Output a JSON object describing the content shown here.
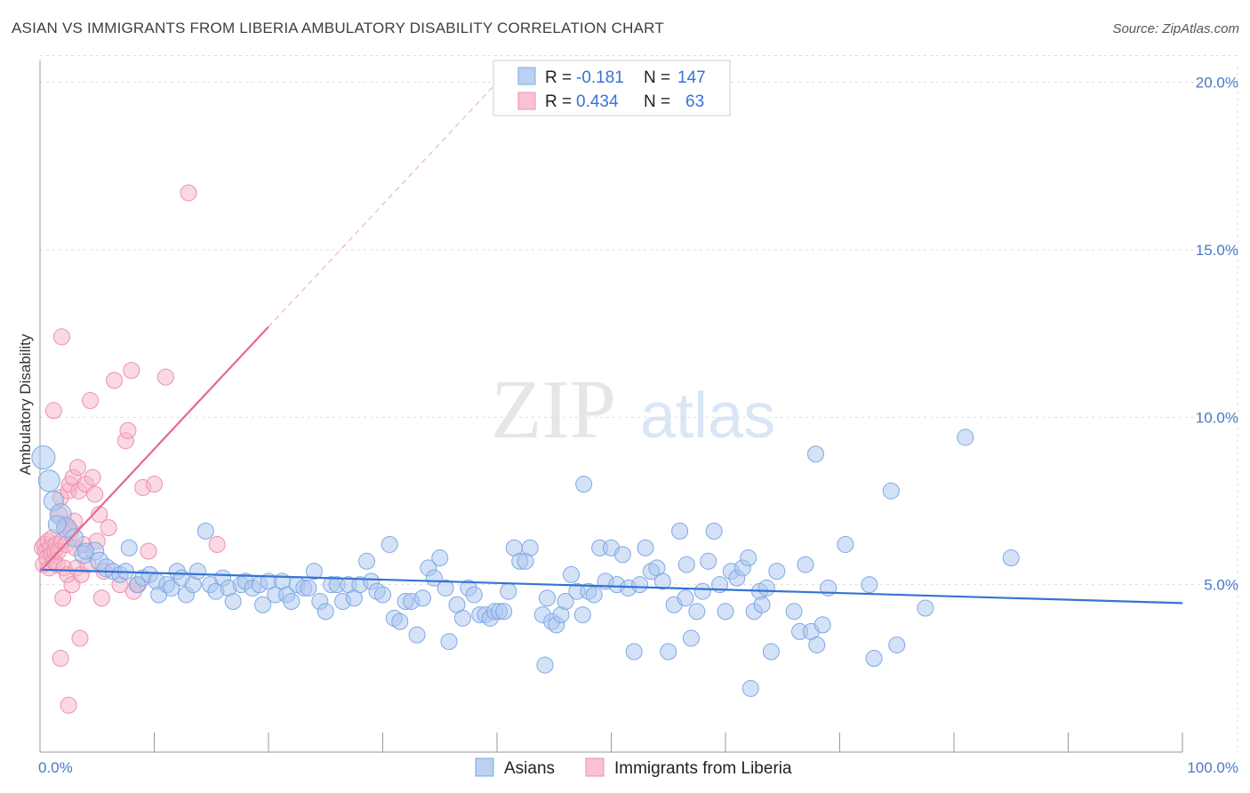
{
  "header": {
    "title": "ASIAN VS IMMIGRANTS FROM LIBERIA AMBULATORY DISABILITY CORRELATION CHART",
    "source": "Source: ZipAtlas.com"
  },
  "watermark": {
    "zip": "ZIP",
    "atlas": "atlas"
  },
  "colors": {
    "asian_fill": "#a9c6ef",
    "asian_stroke": "#7fa8e3",
    "asian_line": "#3573d4",
    "liberia_fill": "#f6b3c8",
    "liberia_stroke": "#ef8fae",
    "liberia_line": "#e4698f",
    "grid": "#dddddd",
    "tick_label": "#4a78c9"
  },
  "legend": {
    "rows": [
      {
        "r_label": "R =",
        "r_value": "-0.181",
        "n_label": "N =",
        "n_value": "147"
      },
      {
        "r_label": "R =",
        "r_value": "0.434",
        "n_label": "N =",
        "n_value": "63"
      }
    ],
    "bottom": [
      "Asians",
      "Immigrants from Liberia"
    ]
  },
  "chart_data": {
    "type": "scatter",
    "title": "ASIAN VS IMMIGRANTS FROM LIBERIA AMBULATORY DISABILITY CORRELATION CHART",
    "xlabel": "",
    "ylabel": "Ambulatory Disability",
    "xlim": [
      0,
      100
    ],
    "ylim": [
      0,
      21
    ],
    "x_tick_labels": [
      "0.0%",
      "100.0%"
    ],
    "y_ticks": [
      5,
      10,
      15,
      20
    ],
    "y_tick_labels": [
      "5.0%",
      "10.0%",
      "15.0%",
      "20.0%"
    ],
    "grid": true,
    "legend_position": "top-center",
    "series": [
      {
        "name": "Asians",
        "r": -0.181,
        "n": 147,
        "trend": {
          "x": [
            0,
            100
          ],
          "y": [
            5.45,
            4.45
          ],
          "dashed_extension": false
        },
        "points": [
          [
            0.3,
            8.8,
            13
          ],
          [
            0.8,
            8.1,
            12
          ],
          [
            1.2,
            7.5,
            11
          ],
          [
            1.8,
            7.1,
            12
          ],
          [
            2.3,
            6.7,
            11
          ],
          [
            3.0,
            6.4,
            10
          ],
          [
            1.5,
            6.8,
            10
          ],
          [
            4.8,
            6.0,
            10
          ],
          [
            3.8,
            5.9,
            10
          ],
          [
            4.0,
            6.0,
            9
          ],
          [
            5.2,
            5.7,
            10
          ],
          [
            5.8,
            5.5,
            10
          ],
          [
            6.4,
            5.4,
            9
          ],
          [
            7.0,
            5.3,
            9
          ],
          [
            7.5,
            5.4,
            9
          ],
          [
            7.8,
            6.1,
            9
          ],
          [
            8.5,
            5.0,
            9
          ],
          [
            9.0,
            5.2,
            9
          ],
          [
            9.6,
            5.3,
            9
          ],
          [
            10.2,
            5.1,
            9
          ],
          [
            10.4,
            4.7,
            9
          ],
          [
            11.1,
            5.0,
            9
          ],
          [
            11.5,
            4.9,
            9
          ],
          [
            12.0,
            5.4,
            9
          ],
          [
            12.4,
            5.2,
            9
          ],
          [
            12.8,
            4.7,
            9
          ],
          [
            13.4,
            5.0,
            9
          ],
          [
            13.8,
            5.4,
            9
          ],
          [
            14.5,
            6.6,
            9
          ],
          [
            14.9,
            5.0,
            9
          ],
          [
            15.4,
            4.8,
            9
          ],
          [
            16.0,
            5.2,
            9
          ],
          [
            16.5,
            4.9,
            9
          ],
          [
            16.9,
            4.5,
            9
          ],
          [
            17.6,
            5.0,
            9
          ],
          [
            18.0,
            5.1,
            9
          ],
          [
            18.6,
            4.9,
            9
          ],
          [
            19.2,
            5.0,
            9
          ],
          [
            19.5,
            4.4,
            9
          ],
          [
            20.0,
            5.1,
            9
          ],
          [
            20.6,
            4.7,
            9
          ],
          [
            21.2,
            5.1,
            9
          ],
          [
            21.6,
            4.7,
            9
          ],
          [
            22.0,
            4.5,
            9
          ],
          [
            22.5,
            5.0,
            9
          ],
          [
            23.1,
            4.9,
            9
          ],
          [
            23.5,
            4.9,
            9
          ],
          [
            24.0,
            5.4,
            9
          ],
          [
            24.5,
            4.5,
            9
          ],
          [
            25.0,
            4.2,
            9
          ],
          [
            25.5,
            5.0,
            9
          ],
          [
            26.0,
            5.0,
            9
          ],
          [
            26.5,
            4.5,
            9
          ],
          [
            27.0,
            5.0,
            9
          ],
          [
            27.5,
            4.6,
            9
          ],
          [
            28.0,
            5.0,
            9
          ],
          [
            28.6,
            5.7,
            9
          ],
          [
            29.0,
            5.1,
            9
          ],
          [
            29.5,
            4.8,
            9
          ],
          [
            30.0,
            4.7,
            9
          ],
          [
            30.6,
            6.2,
            9
          ],
          [
            31.0,
            4.0,
            9
          ],
          [
            31.5,
            3.9,
            9
          ],
          [
            32.0,
            4.5,
            9
          ],
          [
            32.5,
            4.5,
            9
          ],
          [
            33.0,
            3.5,
            9
          ],
          [
            33.5,
            4.6,
            9
          ],
          [
            34.0,
            5.5,
            9
          ],
          [
            34.5,
            5.2,
            9
          ],
          [
            35.0,
            5.8,
            9
          ],
          [
            35.5,
            4.9,
            9
          ],
          [
            35.8,
            3.3,
            9
          ],
          [
            36.5,
            4.4,
            9
          ],
          [
            37.0,
            4.0,
            9
          ],
          [
            37.5,
            4.9,
            9
          ],
          [
            38.0,
            4.7,
            9
          ],
          [
            38.5,
            4.1,
            9
          ],
          [
            39.0,
            4.1,
            9
          ],
          [
            39.4,
            4.0,
            9
          ],
          [
            39.8,
            4.2,
            9
          ],
          [
            40.2,
            4.2,
            9
          ],
          [
            40.6,
            4.2,
            9
          ],
          [
            41.0,
            4.8,
            9
          ],
          [
            41.5,
            6.1,
            9
          ],
          [
            42.0,
            5.7,
            9
          ],
          [
            42.5,
            5.7,
            9
          ],
          [
            42.9,
            6.1,
            9
          ],
          [
            44.0,
            4.1,
            9
          ],
          [
            44.4,
            4.6,
            9
          ],
          [
            44.8,
            3.9,
            9
          ],
          [
            45.2,
            3.8,
            9
          ],
          [
            45.6,
            4.1,
            9
          ],
          [
            46.0,
            4.5,
            9
          ],
          [
            46.5,
            5.3,
            9
          ],
          [
            47.0,
            4.8,
            9
          ],
          [
            47.5,
            4.1,
            9
          ],
          [
            48.0,
            4.8,
            9
          ],
          [
            48.5,
            4.7,
            9
          ],
          [
            49.0,
            6.1,
            9
          ],
          [
            49.5,
            5.1,
            9
          ],
          [
            50.0,
            6.1,
            9
          ],
          [
            50.5,
            5.0,
            9
          ],
          [
            51.0,
            5.9,
            9
          ],
          [
            51.5,
            4.9,
            9
          ],
          [
            52.0,
            3.0,
            9
          ],
          [
            52.5,
            5.0,
            9
          ],
          [
            53.0,
            6.1,
            9
          ],
          [
            53.5,
            5.4,
            9
          ],
          [
            54.0,
            5.5,
            9
          ],
          [
            54.5,
            5.1,
            9
          ],
          [
            55.0,
            3.0,
            9
          ],
          [
            55.5,
            4.4,
            9
          ],
          [
            56.0,
            6.6,
            9
          ],
          [
            56.5,
            4.6,
            9
          ],
          [
            57.0,
            3.4,
            9
          ],
          [
            57.5,
            4.2,
            9
          ],
          [
            58.0,
            4.8,
            9
          ],
          [
            58.5,
            5.7,
            9
          ],
          [
            59.0,
            6.6,
            9
          ],
          [
            59.5,
            5.0,
            9
          ],
          [
            60.0,
            4.2,
            9
          ],
          [
            60.5,
            5.4,
            9
          ],
          [
            61.0,
            5.2,
            9
          ],
          [
            61.5,
            5.5,
            9
          ],
          [
            62.0,
            5.8,
            9
          ],
          [
            62.5,
            4.2,
            9
          ],
          [
            63.0,
            4.8,
            9
          ],
          [
            64.0,
            3.0,
            9
          ],
          [
            64.5,
            5.4,
            9
          ],
          [
            66.0,
            4.2,
            9
          ],
          [
            66.5,
            3.6,
            9
          ],
          [
            67.0,
            5.6,
            9
          ],
          [
            67.5,
            3.6,
            9
          ],
          [
            68.0,
            3.2,
            9
          ],
          [
            68.5,
            3.8,
            9
          ],
          [
            69.0,
            4.9,
            9
          ],
          [
            70.5,
            6.2,
            9
          ],
          [
            73.0,
            2.8,
            9
          ],
          [
            74.5,
            7.8,
            9
          ],
          [
            75.0,
            3.2,
            9
          ],
          [
            77.5,
            4.3,
            9
          ],
          [
            81.0,
            9.4,
            9
          ],
          [
            85.0,
            5.8,
            9
          ],
          [
            62.2,
            1.9,
            9
          ],
          [
            56.6,
            5.6,
            9
          ],
          [
            44.2,
            2.6,
            9
          ],
          [
            67.9,
            8.9,
            9
          ],
          [
            47.6,
            8.0,
            9
          ],
          [
            63.2,
            4.4,
            9
          ],
          [
            72.6,
            5.0,
            9
          ],
          [
            63.6,
            4.9,
            9
          ]
        ]
      },
      {
        "name": "Immigrants from Liberia",
        "r": 0.434,
        "n": 63,
        "trend": {
          "x": [
            0,
            20
          ],
          "y": [
            5.4,
            12.7
          ],
          "dashed_extension_to": [
            40,
            20.0
          ]
        },
        "points": [
          [
            0.2,
            6.1,
            9
          ],
          [
            0.3,
            5.6,
            9
          ],
          [
            0.4,
            6.2,
            9
          ],
          [
            0.5,
            6.0,
            9
          ],
          [
            0.6,
            5.8,
            9
          ],
          [
            0.7,
            6.3,
            9
          ],
          [
            0.8,
            5.5,
            9
          ],
          [
            0.9,
            6.1,
            9
          ],
          [
            1.0,
            5.9,
            9
          ],
          [
            1.1,
            6.4,
            9
          ],
          [
            1.2,
            5.7,
            9
          ],
          [
            1.3,
            6.0,
            9
          ],
          [
            1.4,
            6.2,
            9
          ],
          [
            1.5,
            5.6,
            9
          ],
          [
            1.6,
            6.0,
            9
          ],
          [
            1.7,
            7.1,
            9
          ],
          [
            1.8,
            7.6,
            9
          ],
          [
            1.9,
            6.3,
            9
          ],
          [
            2.0,
            4.6,
            9
          ],
          [
            2.1,
            5.5,
            9
          ],
          [
            2.2,
            6.8,
            9
          ],
          [
            2.3,
            6.2,
            9
          ],
          [
            2.4,
            5.3,
            9
          ],
          [
            2.5,
            7.8,
            9
          ],
          [
            2.6,
            8.0,
            9
          ],
          [
            2.7,
            6.6,
            9
          ],
          [
            2.8,
            5.0,
            9
          ],
          [
            2.9,
            8.2,
            9
          ],
          [
            3.0,
            6.9,
            9
          ],
          [
            3.1,
            6.1,
            9
          ],
          [
            3.2,
            5.5,
            9
          ],
          [
            3.3,
            8.5,
            9
          ],
          [
            3.4,
            7.8,
            9
          ],
          [
            3.5,
            3.4,
            9
          ],
          [
            3.6,
            5.3,
            9
          ],
          [
            3.8,
            6.2,
            9
          ],
          [
            4.0,
            8.0,
            9
          ],
          [
            4.2,
            5.6,
            9
          ],
          [
            4.4,
            10.5,
            9
          ],
          [
            4.6,
            8.2,
            9
          ],
          [
            4.8,
            7.7,
            9
          ],
          [
            5.0,
            6.3,
            9
          ],
          [
            5.2,
            7.1,
            9
          ],
          [
            5.4,
            4.6,
            9
          ],
          [
            5.6,
            5.4,
            9
          ],
          [
            6.0,
            6.7,
            9
          ],
          [
            6.5,
            11.1,
            9
          ],
          [
            7.0,
            5.0,
            9
          ],
          [
            7.5,
            9.3,
            9
          ],
          [
            7.7,
            9.6,
            9
          ],
          [
            8.0,
            11.4,
            9
          ],
          [
            8.2,
            4.8,
            9
          ],
          [
            8.6,
            5.0,
            9
          ],
          [
            9.0,
            7.9,
            9
          ],
          [
            9.5,
            6.0,
            9
          ],
          [
            10.0,
            8.0,
            9
          ],
          [
            11.0,
            11.2,
            9
          ],
          [
            13.0,
            16.7,
            9
          ],
          [
            15.5,
            6.2,
            9
          ],
          [
            1.2,
            10.2,
            9
          ],
          [
            1.8,
            2.8,
            9
          ],
          [
            2.5,
            1.4,
            9
          ],
          [
            1.9,
            12.4,
            9
          ]
        ]
      }
    ]
  }
}
